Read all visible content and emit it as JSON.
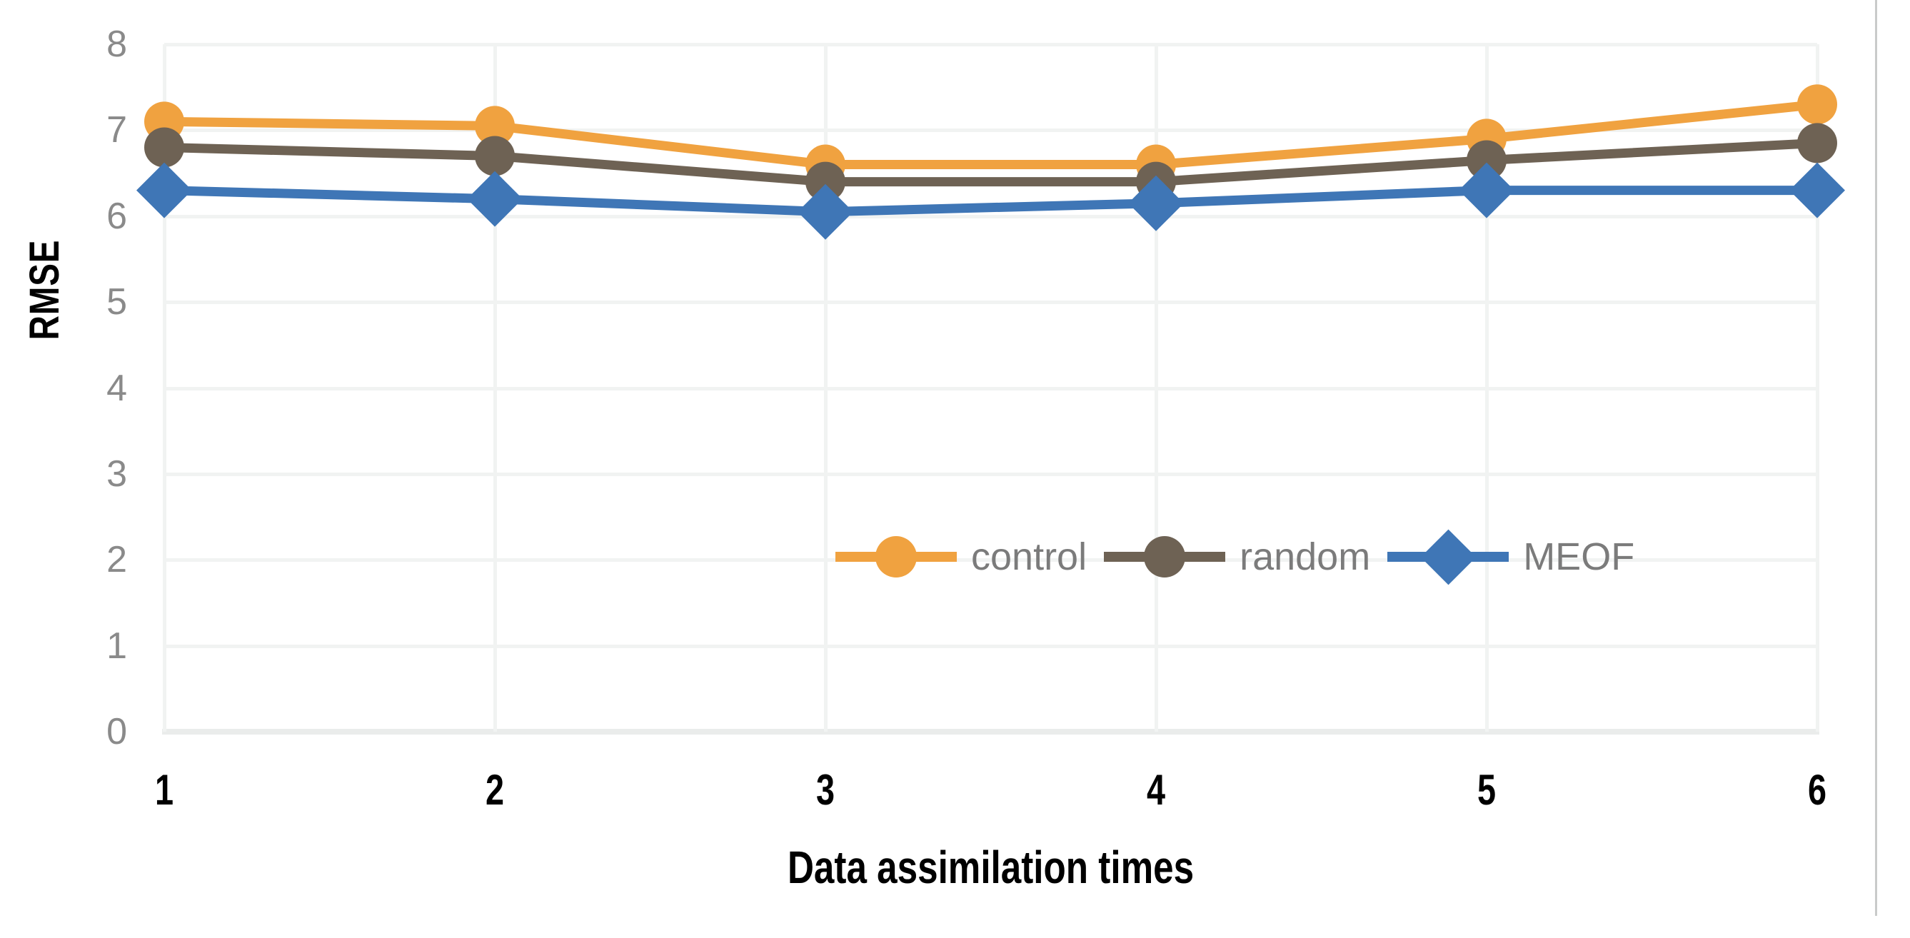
{
  "chart_data": {
    "type": "line",
    "title": "",
    "xlabel": "Data assimilation times",
    "ylabel": "RMSE",
    "categories": [
      "1",
      "2",
      "3",
      "4",
      "5",
      "6"
    ],
    "y_ticks": [
      "0",
      "1",
      "2",
      "3",
      "4",
      "5",
      "6",
      "7",
      "8"
    ],
    "ylim": [
      0,
      8
    ],
    "grid": "on",
    "legend_position": "inside-right, between y=2 and y=3 gridlines",
    "series": [
      {
        "name": "control",
        "marker": "circle",
        "color": "#F0A240",
        "values": [
          7.1,
          7.05,
          6.6,
          6.6,
          6.9,
          7.3
        ]
      },
      {
        "name": "random",
        "marker": "circle",
        "color": "#6E6254",
        "values": [
          6.8,
          6.7,
          6.4,
          6.4,
          6.65,
          6.85
        ]
      },
      {
        "name": "MEOF",
        "marker": "diamond",
        "color": "#3F76B6",
        "values": [
          6.3,
          6.2,
          6.05,
          6.15,
          6.3,
          6.3
        ]
      }
    ],
    "styles": {
      "gridline_color": "#F1F3F2",
      "axis_line_color": "#EAECEB",
      "y_tick_text_color": "#8A8A8A",
      "x_tick_text_color": "#000000",
      "axis_title_color": "#000000",
      "legend_text_color": "#7B7B7B",
      "figure_edge_line_color": "#C9CBCA",
      "background": "#FFFFFF"
    }
  }
}
